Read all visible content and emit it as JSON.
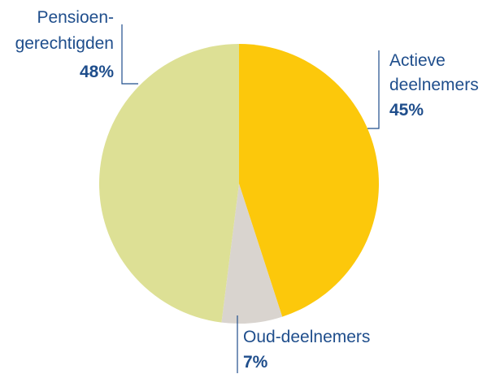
{
  "chart_data": {
    "type": "pie",
    "slices": [
      {
        "label_lines": [
          "Actieve",
          "deelnemers"
        ],
        "value": 45,
        "value_label": "45%",
        "color": "#fcc80b"
      },
      {
        "label_lines": [
          "Oud-deelnemers"
        ],
        "value": 7,
        "value_label": "7%",
        "color": "#d9d4cf"
      },
      {
        "label_lines": [
          "Pensioen-",
          "gerechtigden"
        ],
        "value": 48,
        "value_label": "48%",
        "color": "#dde095"
      }
    ],
    "start_angle_deg": 0,
    "direction": "clockwise",
    "label_color": "#1f4e8c"
  }
}
